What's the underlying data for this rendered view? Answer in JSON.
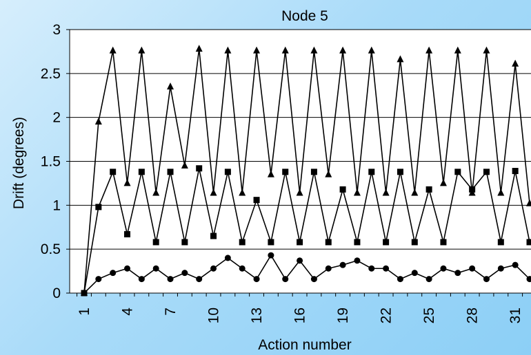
{
  "chart_data": {
    "type": "line",
    "title": "Node 5",
    "xlabel": "Action number",
    "ylabel": "Drift (degrees)",
    "ylim": [
      0,
      3
    ],
    "yticks": [
      "0",
      "0.5",
      "1",
      "1.5",
      "2",
      "2.5",
      "3"
    ],
    "xticks": [
      "1",
      "4",
      "7",
      "10",
      "13",
      "16",
      "19",
      "22",
      "25",
      "28",
      "31"
    ],
    "grid": "horizontal",
    "x": [
      1,
      2,
      3,
      4,
      5,
      6,
      7,
      8,
      9,
      10,
      11,
      12,
      13,
      14,
      15,
      16,
      17,
      18,
      19,
      20,
      21,
      22,
      23,
      24,
      25,
      26,
      27,
      28,
      29,
      30,
      31,
      32
    ],
    "series": [
      {
        "marker": "triangle",
        "values": [
          0,
          1.95,
          2.76,
          1.25,
          2.76,
          1.14,
          2.35,
          1.45,
          2.78,
          1.14,
          2.76,
          1.14,
          2.76,
          1.35,
          2.76,
          1.14,
          2.76,
          1.35,
          2.76,
          1.14,
          2.76,
          1.14,
          2.66,
          1.14,
          2.76,
          1.25,
          2.76,
          1.14,
          2.76,
          1.14,
          2.61,
          1.02
        ]
      },
      {
        "marker": "square",
        "values": [
          0,
          0.98,
          1.38,
          0.67,
          1.38,
          0.58,
          1.38,
          0.58,
          1.42,
          0.65,
          1.38,
          0.58,
          1.06,
          0.58,
          1.38,
          0.58,
          1.38,
          0.58,
          1.18,
          0.58,
          1.38,
          0.58,
          1.38,
          0.58,
          1.18,
          0.58,
          1.38,
          1.18,
          1.38,
          0.58,
          1.39,
          0.58
        ]
      },
      {
        "marker": "circle",
        "values": [
          0,
          0.16,
          0.23,
          0.28,
          0.16,
          0.28,
          0.16,
          0.23,
          0.16,
          0.28,
          0.4,
          0.28,
          0.16,
          0.43,
          0.16,
          0.37,
          0.16,
          0.28,
          0.32,
          0.37,
          0.28,
          0.28,
          0.16,
          0.23,
          0.16,
          0.28,
          0.23,
          0.28,
          0.16,
          0.28,
          0.32,
          0.16
        ]
      }
    ]
  },
  "colors": {
    "line": "#000000",
    "plot_bg": "#ffffff",
    "grid": "#000000"
  }
}
